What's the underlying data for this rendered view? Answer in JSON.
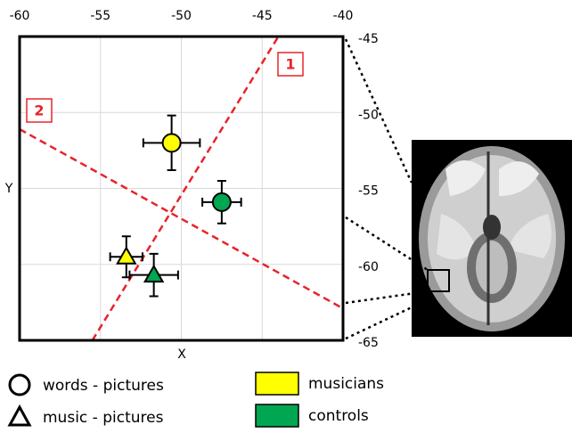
{
  "chart_data": {
    "type": "scatter",
    "xlabel": "X",
    "ylabel": "Y",
    "xlim": [
      -60,
      -40
    ],
    "xticks": [
      -60,
      -55,
      -50,
      -45,
      -40
    ],
    "ylim": [
      -65,
      -45
    ],
    "yticks": [
      -65,
      -60,
      -55,
      -50,
      -45
    ],
    "grid": true,
    "series": [
      {
        "name": "musicians",
        "color": "#ffff00",
        "markers": [
          "circle",
          "triangle"
        ],
        "x": [
          -50.6,
          -53.4
        ],
        "values": [
          -52.0,
          -59.5
        ],
        "xerr": [
          1.75,
          1.0
        ],
        "yerr": [
          1.8,
          1.35
        ]
      },
      {
        "name": "controls",
        "color": "#00a651",
        "markers": [
          "circle",
          "triangle"
        ],
        "x": [
          -47.5,
          -51.7
        ],
        "values": [
          -55.9,
          -60.7
        ],
        "xerr": [
          1.2,
          1.5
        ],
        "yerr": [
          1.4,
          1.4
        ]
      }
    ],
    "marker_legend": [
      {
        "label": "words - pictures",
        "marker": "circle"
      },
      {
        "label": "music - pictures",
        "marker": "triangle"
      }
    ],
    "reference_lines": [
      {
        "label": "1",
        "color": "#e8232a",
        "x": [
          -55.5,
          -44.0
        ],
        "y": [
          -65,
          -45
        ]
      },
      {
        "label": "2",
        "color": "#e8232a",
        "x": [
          -60,
          -40
        ],
        "y": [
          -51.1,
          -62.9
        ]
      }
    ]
  }
}
